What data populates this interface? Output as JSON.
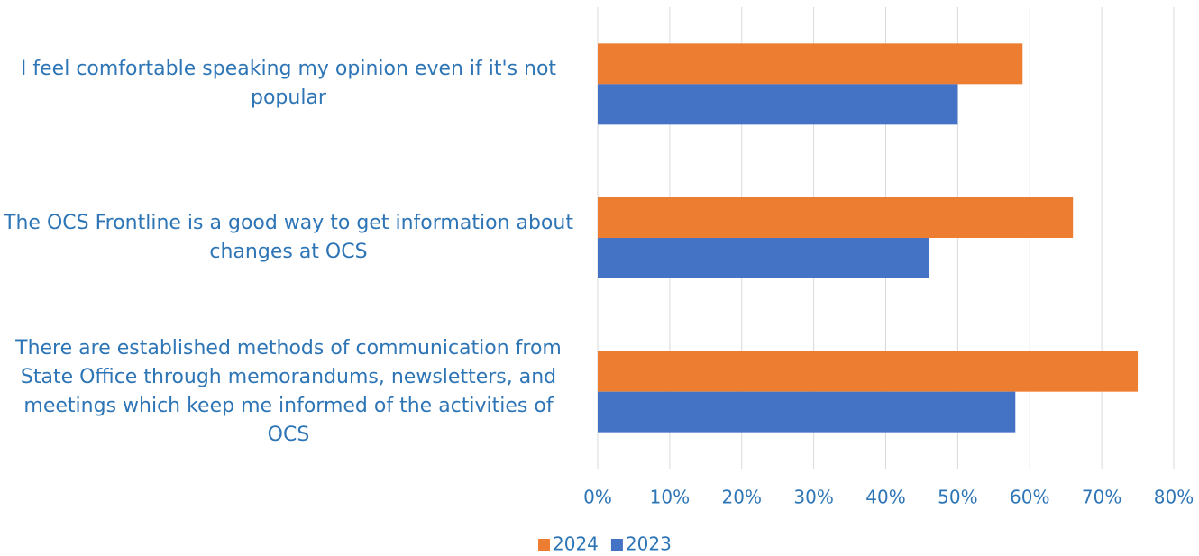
{
  "chart_data": {
    "type": "barh",
    "categories": [
      "I feel comfortable speaking my opinion even if it's not popular",
      "The OCS Frontline is a good way to get information about changes at OCS",
      "There are established methods of communication from State Office through memorandums, newsletters, and meetings which keep me informed of the activities of OCS"
    ],
    "series": [
      {
        "name": "2024",
        "color": "#ed7d31",
        "values": [
          59,
          66,
          75
        ]
      },
      {
        "name": "2023",
        "color": "#4472c4",
        "values": [
          50,
          46,
          58
        ]
      }
    ],
    "xlim": [
      0,
      80
    ],
    "xticks": [
      {
        "value": 0,
        "label": "0%"
      },
      {
        "value": 10,
        "label": "10%"
      },
      {
        "value": 20,
        "label": "20%"
      },
      {
        "value": 30,
        "label": "30%"
      },
      {
        "value": 40,
        "label": "40%"
      },
      {
        "value": 50,
        "label": "50%"
      },
      {
        "value": 60,
        "label": "60%"
      },
      {
        "value": 70,
        "label": "70%"
      },
      {
        "value": 80,
        "label": "80%"
      }
    ],
    "grid": true,
    "legend": "bottom"
  }
}
